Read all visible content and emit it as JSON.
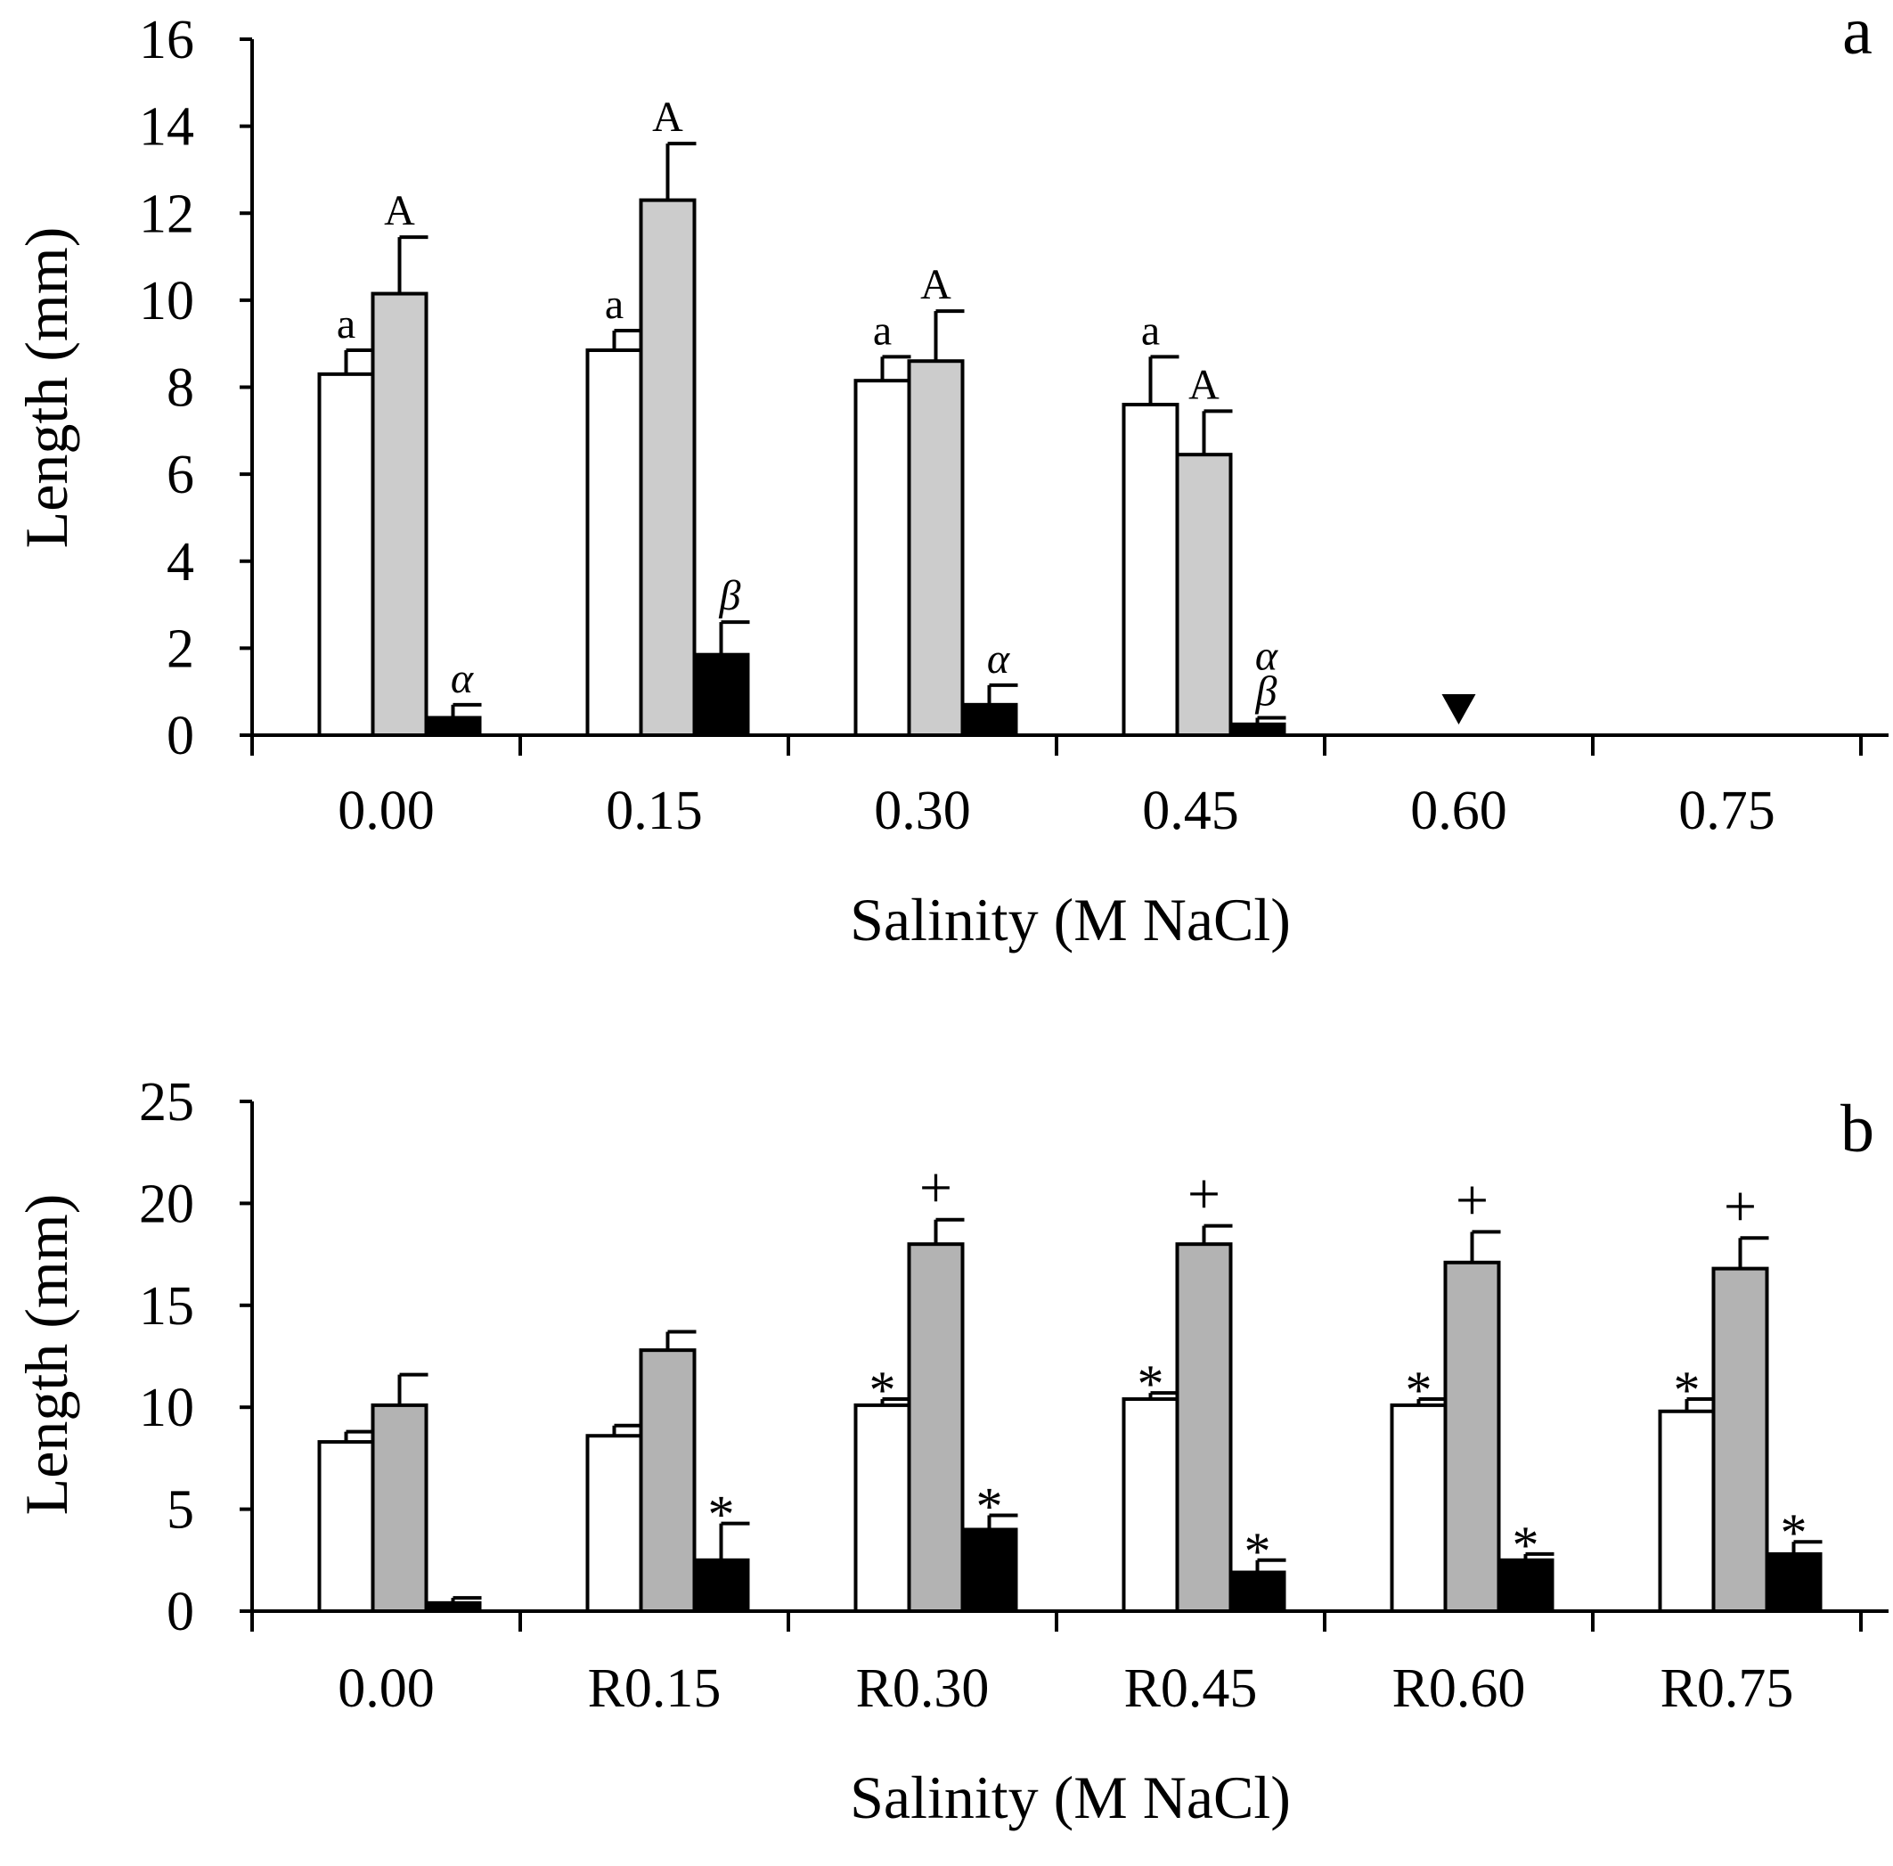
{
  "chart_data": [
    {
      "type": "bar",
      "panel": "a",
      "xlabel": "Salinity (M NaCl)",
      "ylabel": "Length (mm)",
      "ylim": [
        0,
        16
      ],
      "yticks": [
        0,
        2,
        4,
        6,
        8,
        10,
        12,
        14,
        16
      ],
      "categories": [
        "0.00",
        "0.15",
        "0.30",
        "0.45",
        "0.60",
        "0.75"
      ],
      "series": [
        {
          "name": "white",
          "color": "#ffffff",
          "values": [
            8.3,
            8.85,
            8.15,
            7.6,
            null,
            null
          ],
          "errors": [
            0.55,
            0.45,
            0.55,
            1.1,
            null,
            null
          ],
          "labels": [
            "a",
            "a",
            "a",
            "a",
            "",
            ""
          ]
        },
        {
          "name": "gray",
          "color": "#cccccc",
          "values": [
            10.15,
            12.3,
            8.6,
            6.45,
            null,
            null
          ],
          "errors": [
            1.3,
            1.3,
            1.15,
            1.0,
            null,
            null
          ],
          "labels": [
            "A",
            "A",
            "A",
            "A",
            "",
            ""
          ]
        },
        {
          "name": "black",
          "color": "#000000",
          "values": [
            0.4,
            1.85,
            0.7,
            0.25,
            null,
            null
          ],
          "errors": [
            0.3,
            0.75,
            0.45,
            0.15,
            null,
            null
          ],
          "labels": [
            "α",
            "β",
            "α",
            "α β",
            "",
            ""
          ]
        }
      ],
      "markers": [
        {
          "category": "0.60",
          "symbol": "▼",
          "meaning": "no growth"
        }
      ]
    },
    {
      "type": "bar",
      "panel": "b",
      "xlabel": "Salinity (M NaCl)",
      "ylabel": "Length (mm)",
      "ylim": [
        0,
        25
      ],
      "yticks": [
        0,
        5,
        10,
        15,
        20,
        25
      ],
      "categories": [
        "0.00",
        "R0.15",
        "R0.30",
        "R0.45",
        "R0.60",
        "R0.75"
      ],
      "series": [
        {
          "name": "white",
          "color": "#ffffff",
          "values": [
            8.3,
            8.6,
            10.1,
            10.4,
            10.1,
            9.8
          ],
          "errors": [
            0.5,
            0.5,
            0.3,
            0.3,
            0.3,
            0.6
          ],
          "labels": [
            "",
            "",
            "*",
            "*",
            "*",
            "*"
          ]
        },
        {
          "name": "gray",
          "color": "#b3b3b3",
          "values": [
            10.1,
            12.8,
            18.0,
            18.0,
            17.1,
            16.8
          ],
          "errors": [
            1.5,
            0.9,
            1.2,
            0.9,
            1.5,
            1.5
          ],
          "labels": [
            "",
            "",
            "+",
            "+",
            "+",
            "+"
          ]
        },
        {
          "name": "black",
          "color": "#000000",
          "values": [
            0.4,
            2.5,
            4.0,
            1.9,
            2.5,
            2.8
          ],
          "errors": [
            0.25,
            1.8,
            0.7,
            0.6,
            0.3,
            0.6
          ],
          "labels": [
            "",
            "*",
            "*",
            "*",
            "*",
            "*"
          ]
        }
      ]
    }
  ]
}
